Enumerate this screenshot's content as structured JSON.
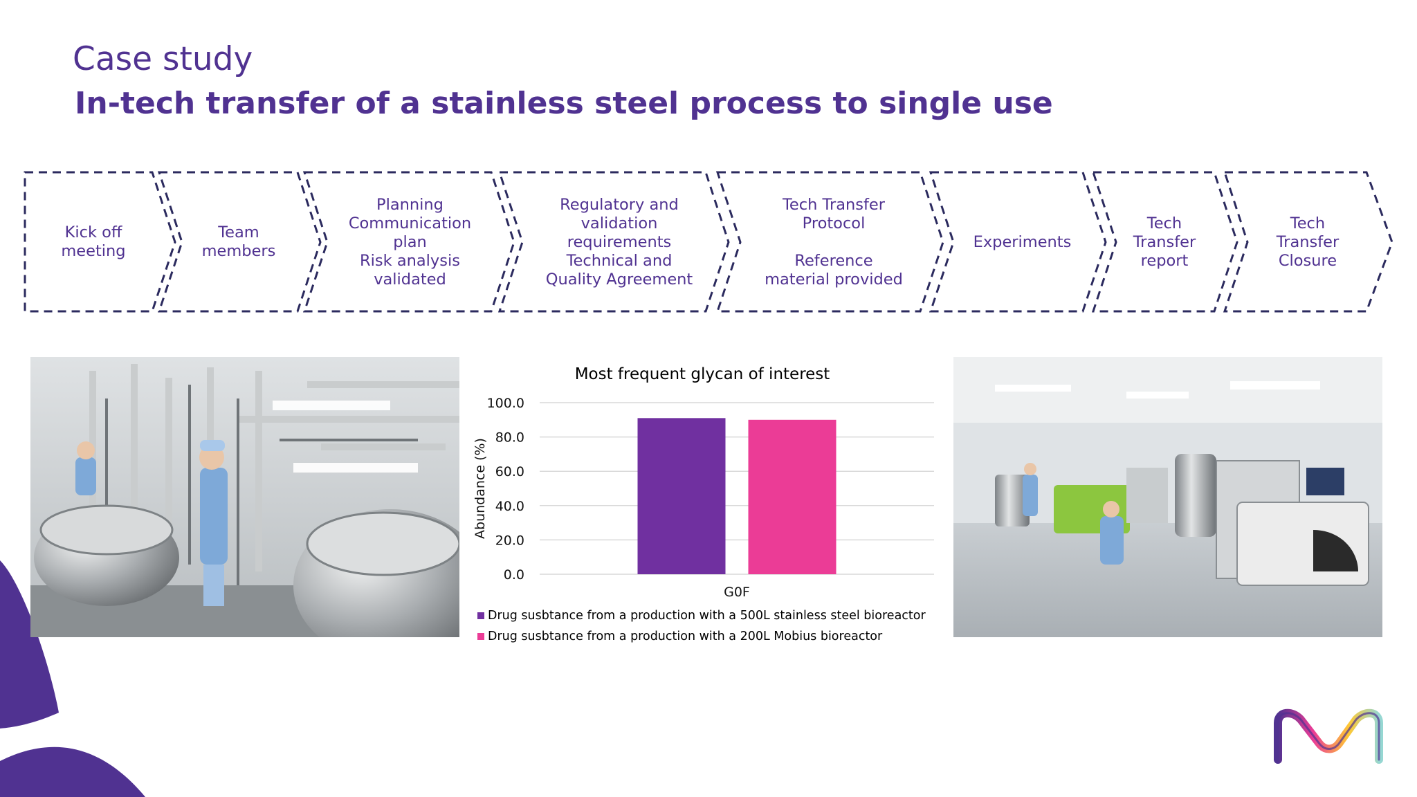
{
  "slide": {
    "title": "Case study",
    "subtitle": "In-tech transfer of a stainless steel process to single use"
  },
  "process_steps": [
    {
      "label": "Kick off\nmeeting"
    },
    {
      "label": "Team\nmembers"
    },
    {
      "label": "Planning\nCommunication\nplan\nRisk analysis\nvalidated"
    },
    {
      "label": "Regulatory and\nvalidation\nrequirements\nTechnical and\nQuality Agreement"
    },
    {
      "label": "Tech  Transfer\nProtocol\n\nReference\nmaterial  provided"
    },
    {
      "label": "Experiments"
    },
    {
      "label": "Tech\nTransfer\nreport"
    },
    {
      "label": "Tech\nTransfer\nClosure"
    }
  ],
  "colors": {
    "brand_purple": "#503291",
    "series_1": "#7030A0",
    "series_2": "#EB3C96",
    "step_outline": "#2B2A5E"
  },
  "photos": {
    "left": "stainless-steel-bioreactor-room-photo",
    "right": "single-use-mobius-bioreactor-room-photo"
  },
  "chart_data": {
    "type": "bar",
    "title": "Most frequent glycan of interest",
    "xlabel": "",
    "ylabel": "Abundance (%)",
    "categories": [
      "G0F"
    ],
    "ylim": [
      0,
      100
    ],
    "yticks": [
      "0.0",
      "20.0",
      "40.0",
      "60.0",
      "80.0",
      "100.0"
    ],
    "grid": true,
    "legend_position": "bottom",
    "series": [
      {
        "name": "Drug susbtance from a production with a 500L stainless steel bioreactor",
        "values": [
          91
        ],
        "color": "#7030A0"
      },
      {
        "name": "Drug susbtance from a production with a 200L Mobius bioreactor",
        "values": [
          90
        ],
        "color": "#EB3C96"
      }
    ]
  }
}
